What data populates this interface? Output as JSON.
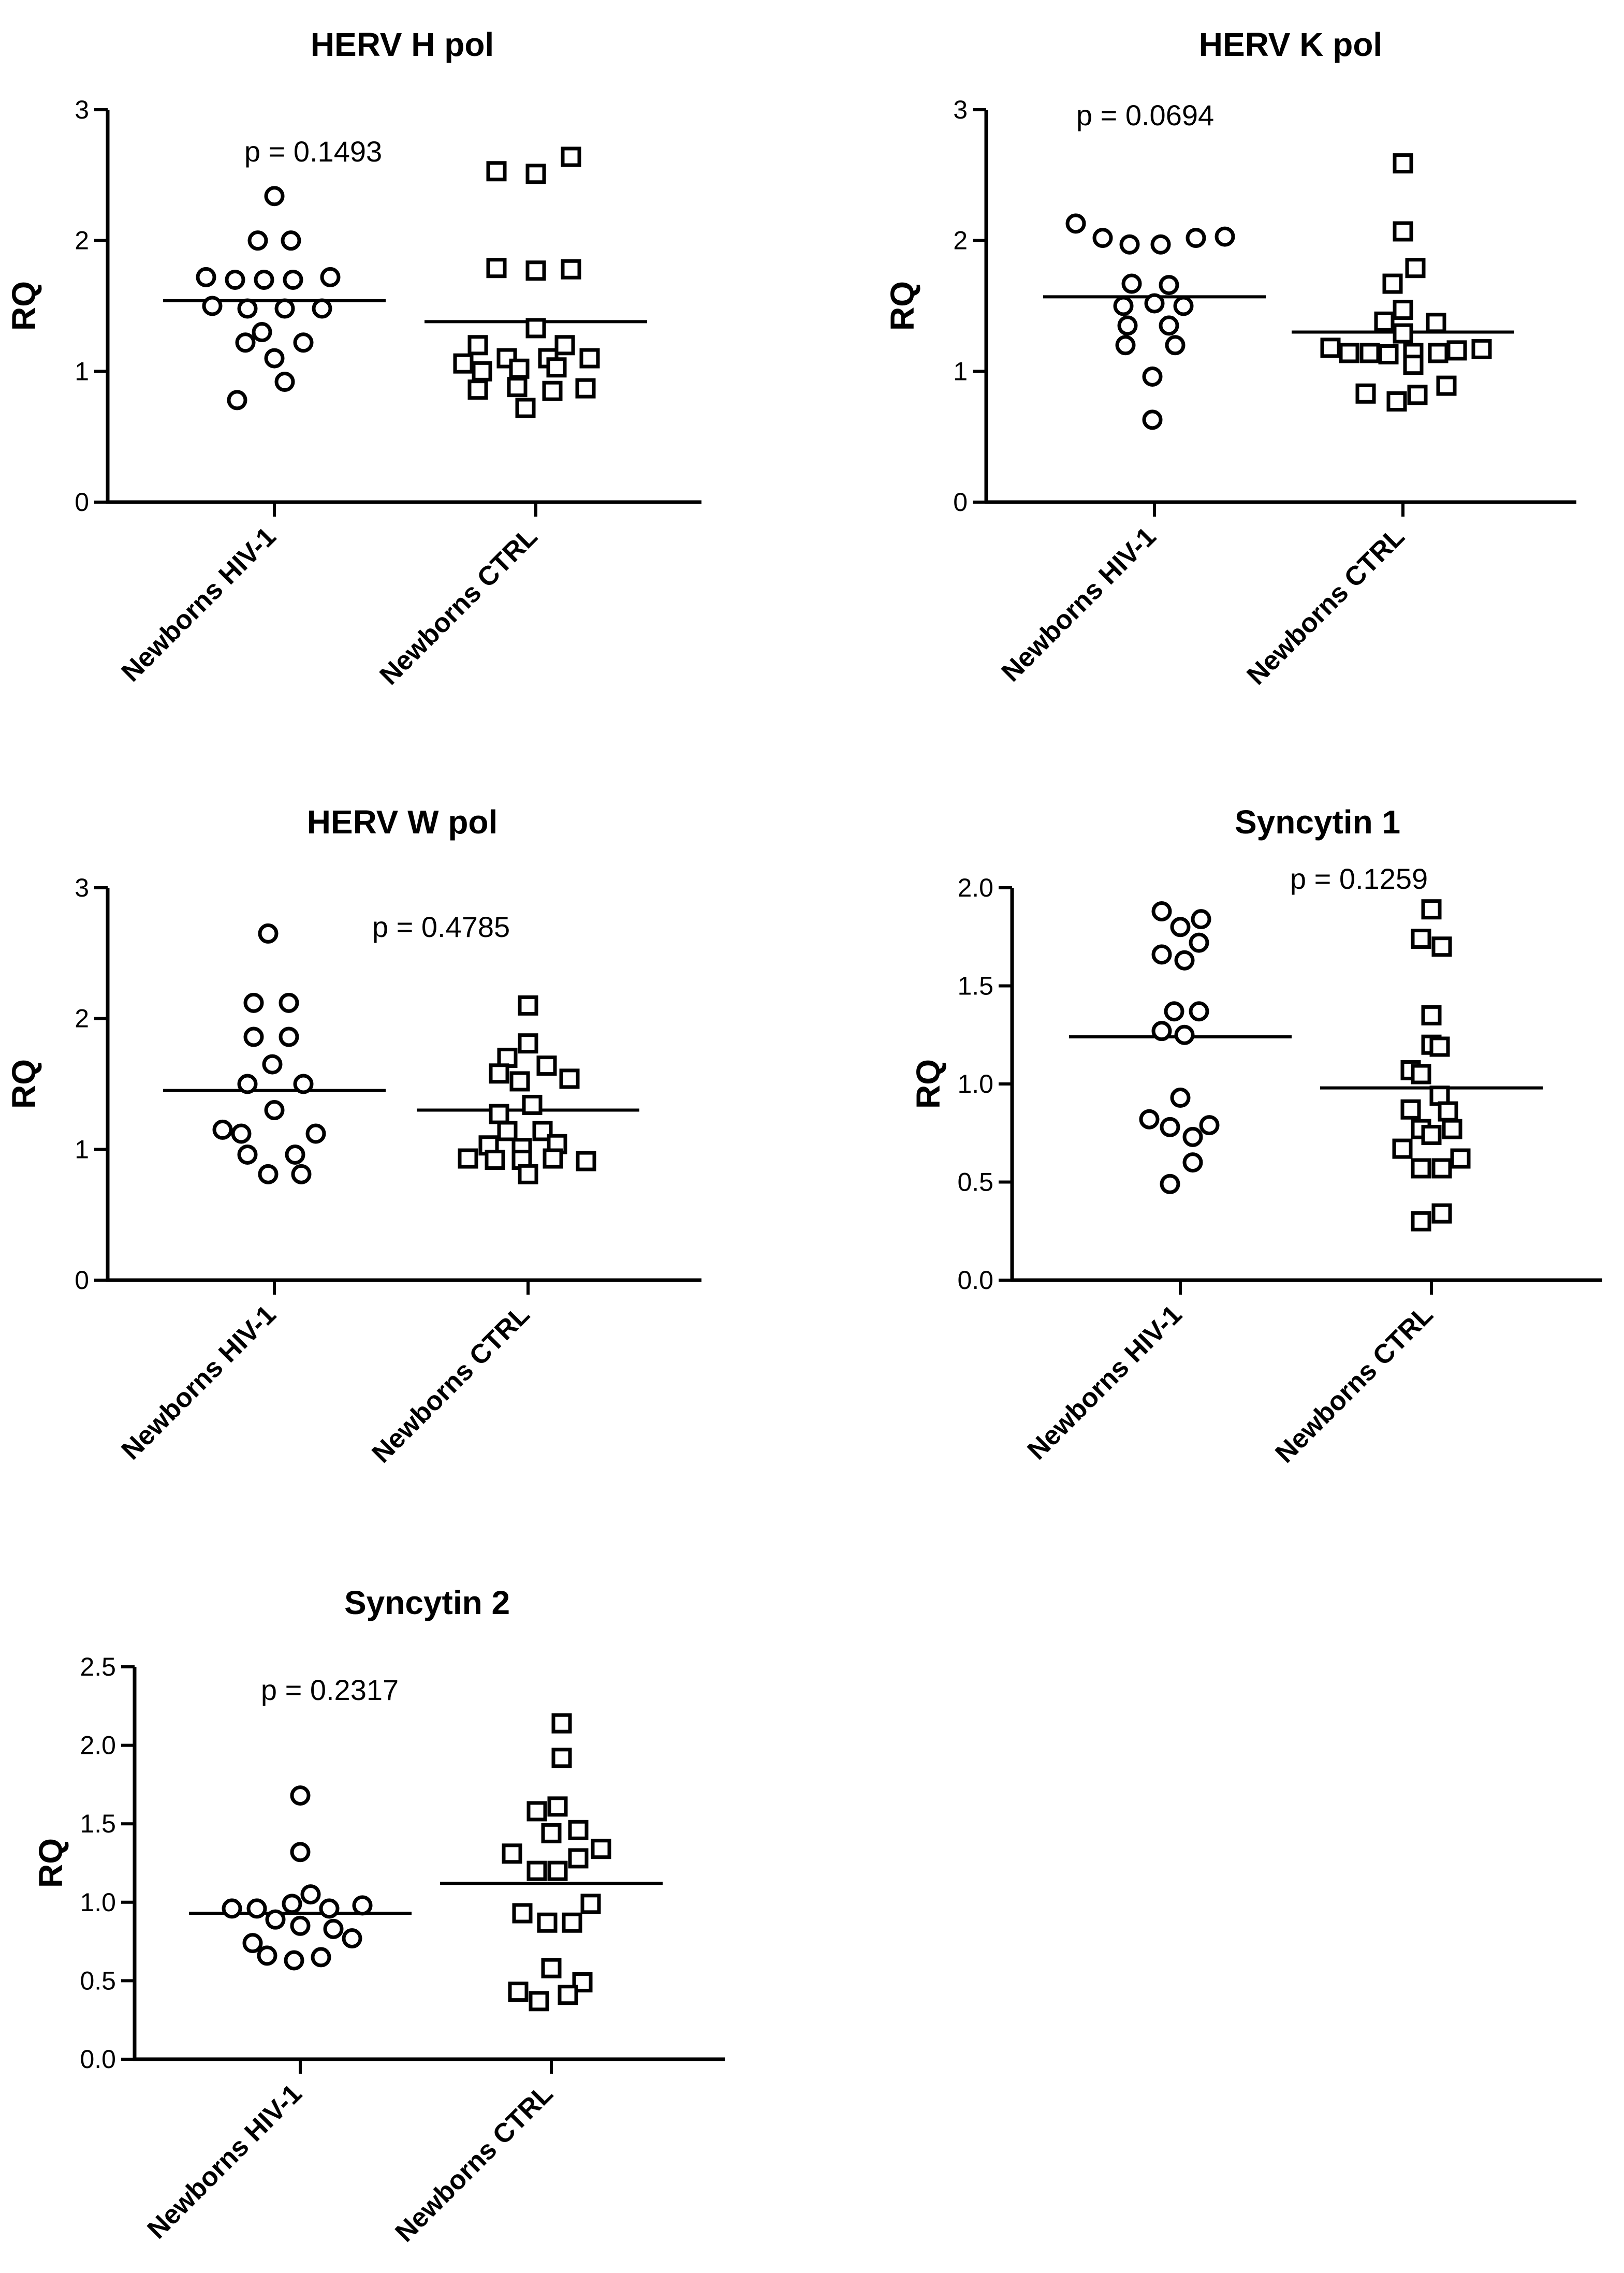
{
  "chart_data": [
    {
      "type": "scatter",
      "title": "HERV H pol",
      "ylabel": "RQ",
      "ylim": [
        0,
        3
      ],
      "yticks": [
        "0",
        "1",
        "2",
        "3"
      ],
      "p_value": "p = 0.1493",
      "categories": [
        "Newborns HIV-1",
        "Newborns CTRL"
      ],
      "series": [
        {
          "name": "Newborns HIV-1",
          "marker": "circle",
          "mean": 1.54,
          "points": [
            {
              "dx": -0.18,
              "y": 0.78
            },
            {
              "dx": 0.0,
              "y": 2.34
            },
            {
              "dx": -0.08,
              "y": 2.0
            },
            {
              "dx": 0.08,
              "y": 2.0
            },
            {
              "dx": -0.33,
              "y": 1.72
            },
            {
              "dx": -0.19,
              "y": 1.7
            },
            {
              "dx": -0.05,
              "y": 1.7
            },
            {
              "dx": 0.09,
              "y": 1.7
            },
            {
              "dx": 0.27,
              "y": 1.72
            },
            {
              "dx": -0.3,
              "y": 1.5
            },
            {
              "dx": -0.13,
              "y": 1.48
            },
            {
              "dx": 0.05,
              "y": 1.48
            },
            {
              "dx": 0.23,
              "y": 1.48
            },
            {
              "dx": -0.06,
              "y": 1.3
            },
            {
              "dx": -0.14,
              "y": 1.22
            },
            {
              "dx": 0.14,
              "y": 1.22
            },
            {
              "dx": 0.0,
              "y": 1.1
            },
            {
              "dx": 0.05,
              "y": 0.92
            }
          ]
        },
        {
          "name": "Newborns CTRL",
          "marker": "square",
          "mean": 1.38,
          "points": [
            {
              "dx": 0.17,
              "y": 2.64
            },
            {
              "dx": -0.19,
              "y": 2.53
            },
            {
              "dx": 0.0,
              "y": 2.51
            },
            {
              "dx": -0.19,
              "y": 1.79
            },
            {
              "dx": 0.0,
              "y": 1.77
            },
            {
              "dx": 0.17,
              "y": 1.78
            },
            {
              "dx": 0.0,
              "y": 1.33
            },
            {
              "dx": -0.28,
              "y": 1.2
            },
            {
              "dx": 0.14,
              "y": 1.2
            },
            {
              "dx": -0.35,
              "y": 1.06
            },
            {
              "dx": -0.14,
              "y": 1.1
            },
            {
              "dx": 0.06,
              "y": 1.1
            },
            {
              "dx": 0.26,
              "y": 1.1
            },
            {
              "dx": -0.26,
              "y": 1.0
            },
            {
              "dx": -0.08,
              "y": 1.02
            },
            {
              "dx": 0.1,
              "y": 1.03
            },
            {
              "dx": -0.28,
              "y": 0.86
            },
            {
              "dx": -0.09,
              "y": 0.88
            },
            {
              "dx": 0.08,
              "y": 0.85
            },
            {
              "dx": 0.24,
              "y": 0.87
            },
            {
              "dx": -0.05,
              "y": 0.72
            }
          ]
        }
      ]
    },
    {
      "type": "scatter",
      "title": "HERV K pol",
      "ylabel": "RQ",
      "ylim": [
        0,
        3
      ],
      "yticks": [
        "0",
        "1",
        "2",
        "3"
      ],
      "p_value": "p = 0.0694",
      "categories": [
        "Newborns HIV-1",
        "Newborns CTRL"
      ],
      "series": [
        {
          "name": "Newborns HIV-1",
          "marker": "circle",
          "mean": 1.57,
          "points": [
            {
              "dx": -0.38,
              "y": 2.13
            },
            {
              "dx": -0.25,
              "y": 2.02
            },
            {
              "dx": -0.12,
              "y": 1.97
            },
            {
              "dx": 0.03,
              "y": 1.97
            },
            {
              "dx": 0.2,
              "y": 2.02
            },
            {
              "dx": 0.34,
              "y": 2.03
            },
            {
              "dx": -0.11,
              "y": 1.67
            },
            {
              "dx": 0.07,
              "y": 1.66
            },
            {
              "dx": -0.15,
              "y": 1.5
            },
            {
              "dx": 0.0,
              "y": 1.52
            },
            {
              "dx": 0.14,
              "y": 1.5
            },
            {
              "dx": -0.13,
              "y": 1.35
            },
            {
              "dx": 0.07,
              "y": 1.35
            },
            {
              "dx": -0.14,
              "y": 1.2
            },
            {
              "dx": 0.1,
              "y": 1.2
            },
            {
              "dx": -0.01,
              "y": 0.96
            },
            {
              "dx": -0.01,
              "y": 0.63
            }
          ]
        },
        {
          "name": "Newborns CTRL",
          "marker": "square",
          "mean": 1.3,
          "points": [
            {
              "dx": 0.0,
              "y": 2.59
            },
            {
              "dx": 0.0,
              "y": 2.07
            },
            {
              "dx": 0.06,
              "y": 1.79
            },
            {
              "dx": -0.05,
              "y": 1.67
            },
            {
              "dx": 0.0,
              "y": 1.47
            },
            {
              "dx": -0.09,
              "y": 1.38
            },
            {
              "dx": 0.16,
              "y": 1.37
            },
            {
              "dx": 0.0,
              "y": 1.29
            },
            {
              "dx": -0.35,
              "y": 1.18
            },
            {
              "dx": -0.26,
              "y": 1.14
            },
            {
              "dx": -0.16,
              "y": 1.14
            },
            {
              "dx": -0.07,
              "y": 1.13
            },
            {
              "dx": 0.05,
              "y": 1.14
            },
            {
              "dx": 0.17,
              "y": 1.14
            },
            {
              "dx": 0.26,
              "y": 1.16
            },
            {
              "dx": 0.38,
              "y": 1.17
            },
            {
              "dx": 0.05,
              "y": 1.05
            },
            {
              "dx": -0.18,
              "y": 0.83
            },
            {
              "dx": -0.03,
              "y": 0.77
            },
            {
              "dx": 0.07,
              "y": 0.82
            },
            {
              "dx": 0.21,
              "y": 0.89
            }
          ]
        }
      ]
    },
    {
      "type": "scatter",
      "title": "HERV W pol",
      "ylabel": "RQ",
      "ylim": [
        0,
        3
      ],
      "yticks": [
        "0",
        "1",
        "2",
        "3"
      ],
      "p_value": "p = 0.4785",
      "categories": [
        "Newborns HIV-1",
        "Newborns CTRL"
      ],
      "series": [
        {
          "name": "Newborns HIV-1",
          "marker": "circle",
          "mean": 1.45,
          "points": [
            {
              "dx": -0.03,
              "y": 2.65
            },
            {
              "dx": -0.1,
              "y": 2.12
            },
            {
              "dx": 0.07,
              "y": 2.12
            },
            {
              "dx": -0.1,
              "y": 1.86
            },
            {
              "dx": 0.07,
              "y": 1.86
            },
            {
              "dx": -0.01,
              "y": 1.65
            },
            {
              "dx": -0.13,
              "y": 1.5
            },
            {
              "dx": 0.14,
              "y": 1.5
            },
            {
              "dx": 0.0,
              "y": 1.3
            },
            {
              "dx": -0.25,
              "y": 1.15
            },
            {
              "dx": -0.16,
              "y": 1.12
            },
            {
              "dx": 0.2,
              "y": 1.12
            },
            {
              "dx": -0.13,
              "y": 0.96
            },
            {
              "dx": 0.1,
              "y": 0.96
            },
            {
              "dx": -0.03,
              "y": 0.81
            },
            {
              "dx": 0.13,
              "y": 0.81
            }
          ]
        },
        {
          "name": "Newborns CTRL",
          "marker": "square",
          "mean": 1.3,
          "points": [
            {
              "dx": 0.0,
              "y": 2.1
            },
            {
              "dx": 0.0,
              "y": 1.81
            },
            {
              "dx": -0.1,
              "y": 1.7
            },
            {
              "dx": 0.09,
              "y": 1.64
            },
            {
              "dx": -0.14,
              "y": 1.58
            },
            {
              "dx": -0.04,
              "y": 1.52
            },
            {
              "dx": 0.2,
              "y": 1.54
            },
            {
              "dx": 0.02,
              "y": 1.34
            },
            {
              "dx": -0.14,
              "y": 1.27
            },
            {
              "dx": -0.1,
              "y": 1.14
            },
            {
              "dx": 0.07,
              "y": 1.14
            },
            {
              "dx": -0.19,
              "y": 1.03
            },
            {
              "dx": -0.03,
              "y": 1.01
            },
            {
              "dx": 0.14,
              "y": 1.04
            },
            {
              "dx": -0.29,
              "y": 0.93
            },
            {
              "dx": -0.16,
              "y": 0.92
            },
            {
              "dx": -0.03,
              "y": 0.92
            },
            {
              "dx": 0.12,
              "y": 0.93
            },
            {
              "dx": 0.28,
              "y": 0.91
            },
            {
              "dx": 0.0,
              "y": 0.81
            }
          ]
        }
      ]
    },
    {
      "type": "scatter",
      "title": "Syncytin 1",
      "ylabel": "RQ",
      "ylim": [
        0,
        2.0
      ],
      "yticks": [
        "0.0",
        "0.5",
        "1.0",
        "1.5",
        "2.0"
      ],
      "p_value": "p = 0.1259",
      "categories": [
        "Newborns HIV-1",
        "Newborns CTRL"
      ],
      "series": [
        {
          "name": "Newborns HIV-1",
          "marker": "circle",
          "mean": 1.24,
          "points": [
            {
              "dx": -0.09,
              "y": 1.88
            },
            {
              "dx": 0.1,
              "y": 1.84
            },
            {
              "dx": 0.0,
              "y": 1.8
            },
            {
              "dx": 0.09,
              "y": 1.72
            },
            {
              "dx": -0.09,
              "y": 1.66
            },
            {
              "dx": 0.02,
              "y": 1.63
            },
            {
              "dx": 0.09,
              "y": 1.37
            },
            {
              "dx": -0.03,
              "y": 1.37
            },
            {
              "dx": -0.09,
              "y": 1.27
            },
            {
              "dx": 0.02,
              "y": 1.25
            },
            {
              "dx": 0.0,
              "y": 0.93
            },
            {
              "dx": -0.15,
              "y": 0.82
            },
            {
              "dx": 0.14,
              "y": 0.79
            },
            {
              "dx": -0.05,
              "y": 0.78
            },
            {
              "dx": 0.06,
              "y": 0.73
            },
            {
              "dx": 0.06,
              "y": 0.6
            },
            {
              "dx": -0.05,
              "y": 0.49
            }
          ]
        },
        {
          "name": "Newborns CTRL",
          "marker": "square",
          "mean": 0.98,
          "points": [
            {
              "dx": 0.0,
              "y": 1.89
            },
            {
              "dx": -0.05,
              "y": 1.74
            },
            {
              "dx": 0.05,
              "y": 1.7
            },
            {
              "dx": 0.0,
              "y": 1.35
            },
            {
              "dx": 0.0,
              "y": 1.2
            },
            {
              "dx": 0.04,
              "y": 1.19
            },
            {
              "dx": -0.1,
              "y": 1.07
            },
            {
              "dx": -0.05,
              "y": 1.05
            },
            {
              "dx": 0.04,
              "y": 0.94
            },
            {
              "dx": -0.1,
              "y": 0.87
            },
            {
              "dx": 0.08,
              "y": 0.86
            },
            {
              "dx": -0.05,
              "y": 0.77
            },
            {
              "dx": 0.1,
              "y": 0.77
            },
            {
              "dx": 0.0,
              "y": 0.74
            },
            {
              "dx": -0.14,
              "y": 0.67
            },
            {
              "dx": 0.14,
              "y": 0.62
            },
            {
              "dx": -0.05,
              "y": 0.57
            },
            {
              "dx": 0.05,
              "y": 0.57
            },
            {
              "dx": 0.05,
              "y": 0.34
            },
            {
              "dx": -0.05,
              "y": 0.3
            }
          ]
        }
      ]
    },
    {
      "type": "scatter",
      "title": "Syncytin 2",
      "ylabel": "RQ",
      "ylim": [
        0,
        2.5
      ],
      "yticks": [
        "0.0",
        "0.5",
        "1.0",
        "1.5",
        "2.0",
        "2.5"
      ],
      "p_value": "p = 0.2317",
      "categories": [
        "Newborns HIV-1",
        "Newborns CTRL"
      ],
      "series": [
        {
          "name": "Newborns HIV-1",
          "marker": "circle",
          "mean": 0.93,
          "points": [
            {
              "dx": 0.0,
              "y": 1.68
            },
            {
              "dx": 0.0,
              "y": 1.32
            },
            {
              "dx": 0.05,
              "y": 1.05
            },
            {
              "dx": -0.04,
              "y": 0.99
            },
            {
              "dx": -0.33,
              "y": 0.96
            },
            {
              "dx": -0.21,
              "y": 0.96
            },
            {
              "dx": 0.14,
              "y": 0.96
            },
            {
              "dx": 0.3,
              "y": 0.98
            },
            {
              "dx": -0.12,
              "y": 0.89
            },
            {
              "dx": 0.0,
              "y": 0.85
            },
            {
              "dx": 0.16,
              "y": 0.83
            },
            {
              "dx": -0.23,
              "y": 0.74
            },
            {
              "dx": 0.25,
              "y": 0.77
            },
            {
              "dx": -0.16,
              "y": 0.66
            },
            {
              "dx": 0.1,
              "y": 0.65
            },
            {
              "dx": -0.03,
              "y": 0.63
            }
          ]
        },
        {
          "name": "Newborns CTRL",
          "marker": "square",
          "mean": 1.12,
          "points": [
            {
              "dx": 0.05,
              "y": 2.14
            },
            {
              "dx": 0.05,
              "y": 1.92
            },
            {
              "dx": -0.07,
              "y": 1.58
            },
            {
              "dx": 0.03,
              "y": 1.61
            },
            {
              "dx": 0.13,
              "y": 1.46
            },
            {
              "dx": 0.0,
              "y": 1.44
            },
            {
              "dx": -0.19,
              "y": 1.31
            },
            {
              "dx": -0.07,
              "y": 1.2
            },
            {
              "dx": 0.03,
              "y": 1.2
            },
            {
              "dx": 0.13,
              "y": 1.28
            },
            {
              "dx": 0.24,
              "y": 1.34
            },
            {
              "dx": 0.19,
              "y": 0.99
            },
            {
              "dx": -0.14,
              "y": 0.93
            },
            {
              "dx": -0.02,
              "y": 0.87
            },
            {
              "dx": 0.1,
              "y": 0.87
            },
            {
              "dx": 0.0,
              "y": 0.58
            },
            {
              "dx": 0.15,
              "y": 0.49
            },
            {
              "dx": -0.16,
              "y": 0.43
            },
            {
              "dx": -0.06,
              "y": 0.37
            },
            {
              "dx": 0.08,
              "y": 0.41
            }
          ]
        }
      ]
    }
  ]
}
